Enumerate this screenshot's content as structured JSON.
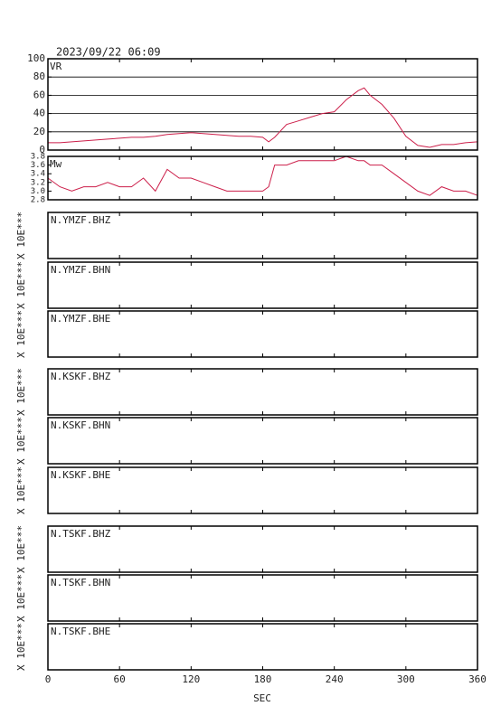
{
  "title": "2023/09/22 06:09",
  "x_axis": {
    "xlim": [
      0,
      360
    ],
    "xticks": [
      0,
      60,
      120,
      180,
      240,
      300,
      360
    ],
    "xlabel": "SEC"
  },
  "chart_data": [
    {
      "type": "line",
      "ylabel": "VR",
      "ylim": [
        0,
        100
      ],
      "yticks": [
        0,
        20,
        40,
        60,
        80,
        100
      ],
      "grid": true,
      "x": [
        0,
        10,
        20,
        30,
        40,
        50,
        60,
        70,
        80,
        90,
        100,
        110,
        120,
        130,
        140,
        150,
        160,
        170,
        180,
        185,
        190,
        200,
        210,
        220,
        230,
        240,
        250,
        260,
        265,
        270,
        280,
        290,
        300,
        310,
        320,
        330,
        340,
        350,
        360
      ],
      "series": [
        {
          "color": "#cc1f4a",
          "values": [
            8,
            8,
            9,
            10,
            11,
            12,
            13,
            14,
            14,
            15,
            17,
            18,
            19,
            18,
            17,
            16,
            15,
            15,
            14,
            9,
            14,
            28,
            32,
            36,
            40,
            42,
            55,
            65,
            68,
            60,
            50,
            35,
            15,
            5,
            3,
            6,
            6,
            8,
            9
          ]
        }
      ]
    },
    {
      "type": "line",
      "ylabel": "Mw",
      "ylim": [
        2.8,
        3.8
      ],
      "yticks": [
        2.8,
        {
          "value": 3,
          "label": "3.0"
        },
        3.2,
        3.4,
        3.6,
        3.8
      ],
      "grid": false,
      "x": [
        0,
        10,
        20,
        30,
        40,
        50,
        60,
        70,
        80,
        90,
        100,
        110,
        120,
        130,
        140,
        150,
        160,
        170,
        180,
        185,
        190,
        200,
        210,
        220,
        230,
        240,
        250,
        260,
        265,
        270,
        280,
        290,
        300,
        310,
        320,
        330,
        340,
        350,
        360
      ],
      "series": [
        {
          "color": "#cc1f4a",
          "values": [
            3.3,
            3.1,
            3.0,
            3.1,
            3.1,
            3.2,
            3.1,
            3.1,
            3.3,
            3.0,
            3.5,
            3.3,
            3.3,
            3.2,
            3.1,
            3.0,
            3.0,
            3.0,
            3.0,
            3.1,
            3.6,
            3.6,
            3.7,
            3.7,
            3.7,
            3.7,
            3.8,
            3.7,
            3.7,
            3.6,
            3.6,
            3.4,
            3.2,
            3.0,
            2.9,
            3.1,
            3.0,
            3.0,
            2.9
          ]
        }
      ]
    }
  ],
  "waveforms": [
    {
      "station": "N.YMZF.BHZ",
      "scale": "X 10E***"
    },
    {
      "station": "N.YMZF.BHN",
      "scale": "X 10E***"
    },
    {
      "station": "N.YMZF.BHE",
      "scale": "X 10E***"
    },
    {
      "station": "N.KSKF.BHZ",
      "scale": "X 10E***"
    },
    {
      "station": "N.KSKF.BHN",
      "scale": "X 10E***"
    },
    {
      "station": "N.KSKF.BHE",
      "scale": "X 10E***"
    },
    {
      "station": "N.TSKF.BHZ",
      "scale": "X 10E***"
    },
    {
      "station": "N.TSKF.BHN",
      "scale": "X 10E***"
    },
    {
      "station": "N.TSKF.BHE",
      "scale": "X 10E***"
    }
  ]
}
